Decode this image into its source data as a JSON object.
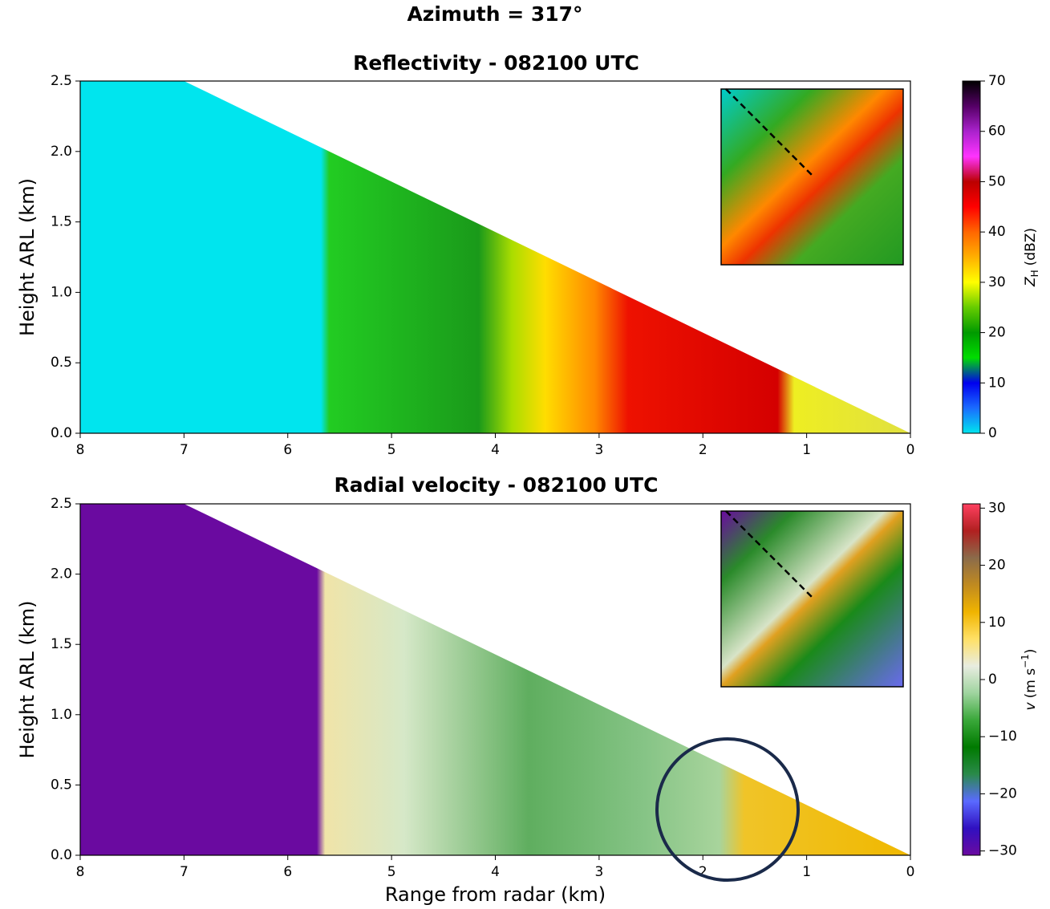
{
  "title": "Azimuth = 317°",
  "chart_data": [
    {
      "type": "heatmap",
      "title": "Reflectivity - 082100 UTC",
      "ylabel": "Height ARL (km)",
      "xlim": [
        8,
        0
      ],
      "xticks": [
        8,
        7,
        6,
        5,
        4,
        3,
        2,
        1,
        0
      ],
      "ylim": [
        0,
        2.5
      ],
      "yticks": [
        {
          "value": 0,
          "label": "0.0"
        },
        0.5,
        {
          "value": 1,
          "label": "1.0"
        },
        1.5,
        {
          "value": 2,
          "label": "2.0"
        },
        2.5
      ],
      "colorbar": {
        "label": {
          "symbol": "Z",
          "subscript": "H",
          "units": "(dBZ)"
        },
        "clim": [
          0,
          70
        ],
        "ticks": [
          0,
          10,
          20,
          30,
          40,
          50,
          60,
          70
        ],
        "colormap": [
          "#00e5ee",
          "#1a6bff",
          "#0000ee",
          "#00dd00",
          "#009a00",
          "#66cc00",
          "#ffff00",
          "#ffb000",
          "#ff6600",
          "#ff0000",
          "#bb0000",
          "#ff33ff",
          "#aa22cc",
          "#550066",
          "#000000"
        ]
      }
    },
    {
      "type": "heatmap",
      "title": "Radial velocity - 082100 UTC",
      "ylabel": "Height ARL (km)",
      "xlabel": "Range from radar (km)",
      "xlim": [
        8,
        0
      ],
      "xticks": [
        8,
        7,
        6,
        5,
        4,
        3,
        2,
        1,
        0
      ],
      "ylim": [
        0,
        2.5
      ],
      "yticks": [
        {
          "value": 0,
          "label": "0.0"
        },
        0.5,
        {
          "value": 1,
          "label": "1.0"
        },
        1.5,
        {
          "value": 2,
          "label": "2.0"
        },
        2.5
      ],
      "colorbar": {
        "label": {
          "symbol": "v",
          "units": "(m s",
          "superscript": "−1",
          "close": ")"
        },
        "clim": [
          -30.75,
          30.75
        ],
        "ticks": [
          {
            "value": -30,
            "label": "−30"
          },
          {
            "value": -20,
            "label": "−20"
          },
          {
            "value": -10,
            "label": "−10"
          },
          0,
          10,
          20,
          30
        ],
        "colormap": [
          "#6a0aa0",
          "#3010c0",
          "#5a6aff",
          "#2a8a4a",
          "#007a00",
          "#3aa83a",
          "#9fd49f",
          "#e8ece0",
          "#ffe066",
          "#f0b400",
          "#c08a20",
          "#8b6b4a",
          "#b02020",
          "#ff4060"
        ]
      }
    }
  ]
}
